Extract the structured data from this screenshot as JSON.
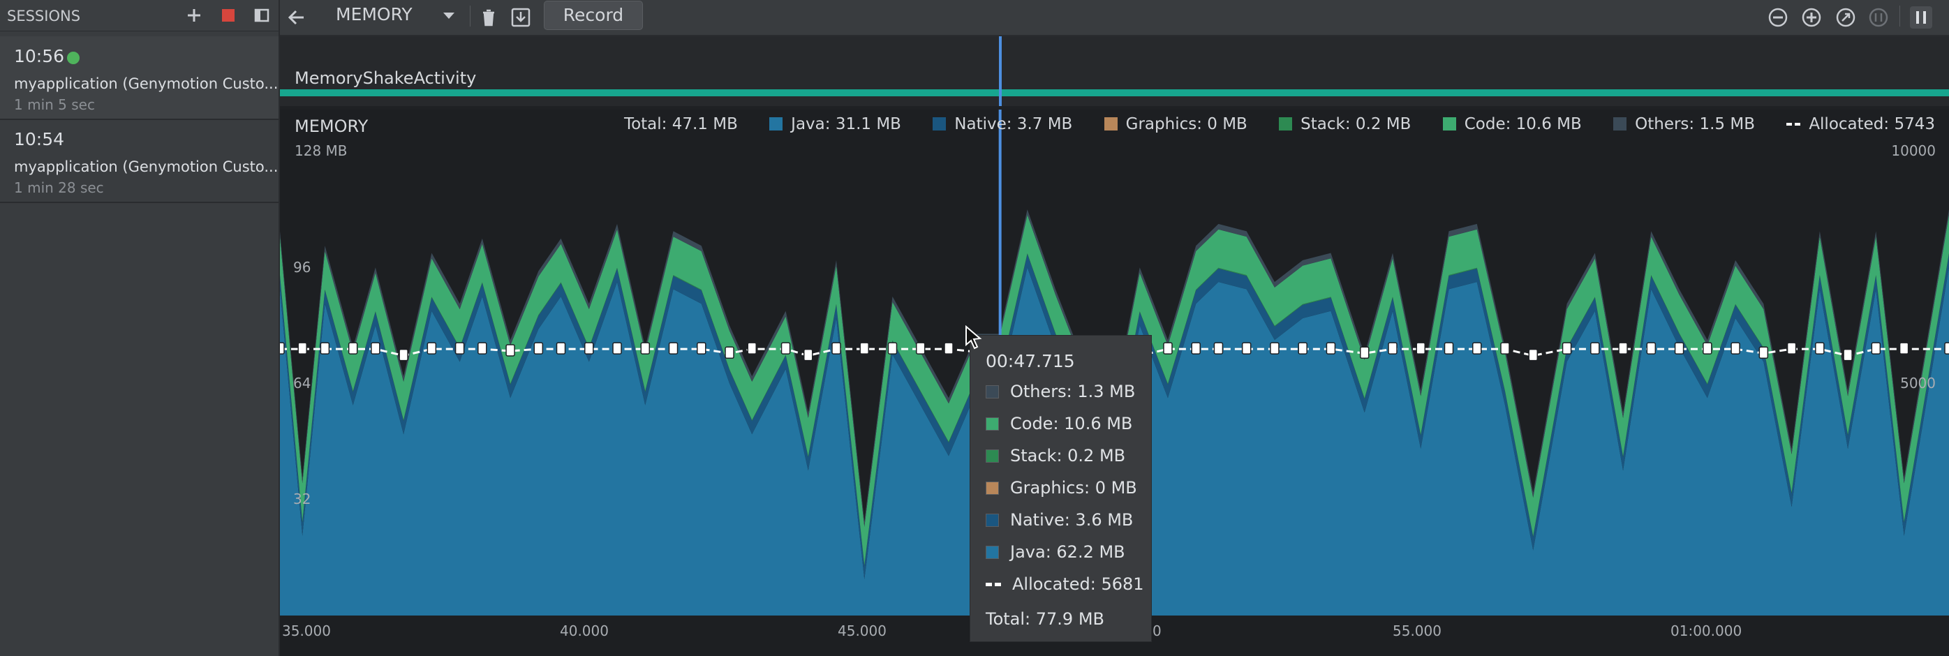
{
  "sidebar": {
    "title": "SESSIONS",
    "sessions": [
      {
        "time": "10:56",
        "name": "myapplication (Genymotion Custo...",
        "duration": "1 min 5 sec",
        "live": true
      },
      {
        "time": "10:54",
        "name": "myapplication (Genymotion Custo...",
        "duration": "1 min 28 sec",
        "live": false
      }
    ]
  },
  "toolbar": {
    "profiler": "MEMORY",
    "record_label": "Record",
    "icons": [
      "add-icon",
      "stop-icon",
      "collapse-panel-icon",
      "back-arrow-icon",
      "dropdown-icon",
      "trash-icon",
      "heap-dump-icon",
      "zoom-out-icon",
      "zoom-in-icon",
      "reset-zoom-icon",
      "live-icon",
      "pause-icon"
    ]
  },
  "activity": {
    "label": "MemoryShakeActivity"
  },
  "memory": {
    "title": "MEMORY",
    "y_axis_left": [
      "128 MB",
      "96",
      "64",
      "32"
    ],
    "y_axis_right": [
      "10000",
      "5000"
    ],
    "x_axis": [
      "35.000",
      "40.000",
      "45.000",
      "0",
      "55.000",
      "01:00.000"
    ]
  },
  "legend": {
    "total": "Total: 47.1 MB",
    "items": [
      {
        "label": "Java: 31.1 MB",
        "color": "#2375a1"
      },
      {
        "label": "Native: 3.7 MB",
        "color": "#1a5680"
      },
      {
        "label": "Graphics: 0 MB",
        "color": "#b8875a"
      },
      {
        "label": "Stack: 0.2 MB",
        "color": "#2d8a52"
      },
      {
        "label": "Code: 10.6 MB",
        "color": "#3dab70"
      },
      {
        "label": "Others: 1.5 MB",
        "color": "#3b4a57"
      }
    ],
    "allocated": "Allocated: 5743"
  },
  "tooltip": {
    "time": "00:47.715",
    "rows": [
      {
        "label": "Others: 1.3 MB",
        "color": "#3b4a57"
      },
      {
        "label": "Code: 10.6 MB",
        "color": "#3dab70"
      },
      {
        "label": "Stack: 0.2 MB",
        "color": "#2d8a52"
      },
      {
        "label": "Graphics: 0 MB",
        "color": "#b8875a"
      },
      {
        "label": "Native: 3.6 MB",
        "color": "#1a5680"
      },
      {
        "label": "Java: 62.2 MB",
        "color": "#2375a1"
      }
    ],
    "allocated": "Allocated: 5681",
    "total": "Total: 77.9 MB"
  },
  "colors": {
    "java": "#2375a1",
    "native": "#1a5680",
    "code": "#3dab70",
    "activity_strip": "#17a68f",
    "cursor": "#4d8fe0",
    "live_dot": "#4fb35c",
    "stop": "#d6463d"
  },
  "chart_data": {
    "type": "area",
    "stacked": true,
    "ylim": [
      0,
      128
    ],
    "ylabel_units": "MB",
    "y2lim": [
      0,
      10000
    ],
    "x_ticks": [
      "35.000",
      "40.000",
      "45.000",
      "0",
      "55.000",
      "01:00.000"
    ],
    "x": [
      34.9,
      35.3,
      35.7,
      36.2,
      36.6,
      37.1,
      37.6,
      38.1,
      38.5,
      39.0,
      39.5,
      39.9,
      40.4,
      40.9,
      41.4,
      41.9,
      42.4,
      42.9,
      43.3,
      43.9,
      44.3,
      44.8,
      45.3,
      45.8,
      46.3,
      46.8,
      47.3,
      47.7,
      48.2,
      48.7,
      49.1,
      49.7,
      50.2,
      50.7,
      51.2,
      51.6,
      52.1,
      52.6,
      53.1,
      53.6,
      54.2,
      54.7,
      55.2,
      55.7,
      56.2,
      56.7,
      57.2,
      57.8,
      58.3,
      58.8,
      59.3,
      59.8,
      60.3,
      60.8,
      61.3,
      61.8,
      62.3,
      62.8,
      63.3,
      63.8,
      64.6
    ],
    "series": [
      {
        "name": "Java",
        "values": [
          90,
          22,
          86,
          58,
          80,
          50,
          84,
          70,
          88,
          60,
          79,
          88,
          70,
          92,
          58,
          90,
          86,
          64,
          50,
          68,
          40,
          82,
          10,
          72,
          58,
          44,
          62,
          62,
          96,
          74,
          58,
          40,
          80,
          60,
          86,
          92,
          90,
          76,
          82,
          84,
          56,
          84,
          46,
          90,
          92,
          58,
          18,
          70,
          84,
          40,
          90,
          74,
          60,
          82,
          70,
          30,
          90,
          46,
          90,
          22,
          96
        ]
      },
      {
        "name": "Native",
        "values": [
          3.7,
          3.7,
          3.7,
          3.7,
          3.7,
          3.7,
          3.7,
          3.7,
          3.7,
          3.7,
          3.7,
          3.7,
          3.7,
          3.7,
          3.7,
          3.7,
          3.7,
          3.7,
          3.7,
          3.7,
          3.7,
          3.7,
          3.7,
          3.7,
          3.7,
          3.7,
          3.6,
          3.6,
          3.7,
          3.7,
          3.7,
          3.7,
          3.7,
          3.7,
          3.7,
          3.7,
          3.7,
          3.7,
          3.7,
          3.7,
          3.7,
          3.7,
          3.7,
          3.7,
          3.7,
          3.7,
          3.7,
          3.7,
          3.7,
          3.7,
          3.7,
          3.7,
          3.7,
          3.7,
          3.7,
          3.7,
          3.7,
          3.7,
          3.7,
          3.7,
          3.7
        ]
      },
      {
        "name": "Graphics",
        "values": [
          0,
          0,
          0,
          0,
          0,
          0,
          0,
          0,
          0,
          0,
          0,
          0,
          0,
          0,
          0,
          0,
          0,
          0,
          0,
          0,
          0,
          0,
          0,
          0,
          0,
          0,
          0,
          0,
          0,
          0,
          0,
          0,
          0,
          0,
          0,
          0,
          0,
          0,
          0,
          0,
          0,
          0,
          0,
          0,
          0,
          0,
          0,
          0,
          0,
          0,
          0,
          0,
          0,
          0,
          0,
          0,
          0,
          0,
          0,
          0,
          0
        ]
      },
      {
        "name": "Stack",
        "values": [
          0.2,
          0.2,
          0.2,
          0.2,
          0.2,
          0.2,
          0.2,
          0.2,
          0.2,
          0.2,
          0.2,
          0.2,
          0.2,
          0.2,
          0.2,
          0.2,
          0.2,
          0.2,
          0.2,
          0.2,
          0.2,
          0.2,
          0.2,
          0.2,
          0.2,
          0.2,
          0.2,
          0.2,
          0.2,
          0.2,
          0.2,
          0.2,
          0.2,
          0.2,
          0.2,
          0.2,
          0.2,
          0.2,
          0.2,
          0.2,
          0.2,
          0.2,
          0.2,
          0.2,
          0.2,
          0.2,
          0.2,
          0.2,
          0.2,
          0.2,
          0.2,
          0.2,
          0.2,
          0.2,
          0.2,
          0.2,
          0.2,
          0.2,
          0.2,
          0.2,
          0.2
        ]
      },
      {
        "name": "Code",
        "values": [
          10.6,
          10.6,
          10.6,
          10.6,
          10.6,
          10.6,
          10.6,
          10.6,
          10.6,
          10.6,
          10.6,
          10.6,
          10.6,
          10.6,
          10.6,
          10.6,
          10.6,
          10.6,
          10.6,
          10.6,
          10.6,
          10.6,
          10.6,
          10.6,
          10.6,
          10.6,
          10.6,
          10.6,
          10.6,
          10.6,
          10.6,
          10.6,
          10.6,
          10.6,
          10.6,
          10.6,
          10.6,
          10.6,
          10.6,
          10.6,
          10.6,
          10.6,
          10.6,
          10.6,
          10.6,
          10.6,
          10.6,
          10.6,
          10.6,
          10.6,
          10.6,
          10.6,
          10.6,
          10.6,
          10.6,
          10.6,
          10.6,
          10.6,
          10.6,
          10.6,
          10.6
        ]
      },
      {
        "name": "Others",
        "values": [
          1.5,
          1.5,
          1.5,
          1.5,
          1.5,
          1.5,
          1.5,
          1.5,
          1.5,
          1.5,
          1.5,
          1.5,
          1.5,
          1.5,
          1.5,
          1.5,
          1.5,
          1.5,
          1.5,
          1.5,
          1.5,
          1.5,
          1.5,
          1.5,
          1.5,
          1.5,
          1.3,
          1.3,
          1.5,
          1.5,
          1.5,
          1.5,
          1.5,
          1.5,
          1.5,
          1.5,
          1.5,
          1.5,
          1.5,
          1.5,
          1.5,
          1.5,
          1.5,
          1.5,
          1.5,
          1.5,
          1.5,
          1.5,
          1.5,
          1.5,
          1.5,
          1.5,
          1.5,
          1.5,
          1.5,
          1.5,
          1.5,
          1.5,
          1.5,
          1.5,
          1.5
        ]
      }
    ],
    "allocated_series": {
      "name": "Allocated",
      "values": [
        5743,
        5743,
        5743,
        5743,
        5743,
        5600,
        5743,
        5743,
        5743,
        5700,
        5743,
        5743,
        5743,
        5743,
        5743,
        5743,
        5743,
        5650,
        5743,
        5743,
        5600,
        5743,
        5743,
        5743,
        5743,
        5743,
        5681,
        5681,
        5743,
        5743,
        5743,
        5700,
        5600,
        5743,
        5743,
        5743,
        5743,
        5743,
        5743,
        5743,
        5650,
        5743,
        5743,
        5743,
        5743,
        5743,
        5600,
        5743,
        5743,
        5743,
        5743,
        5743,
        5743,
        5743,
        5650,
        5743,
        5743,
        5600,
        5743,
        5743,
        5743
      ]
    },
    "cursor_x": 47.715
  }
}
